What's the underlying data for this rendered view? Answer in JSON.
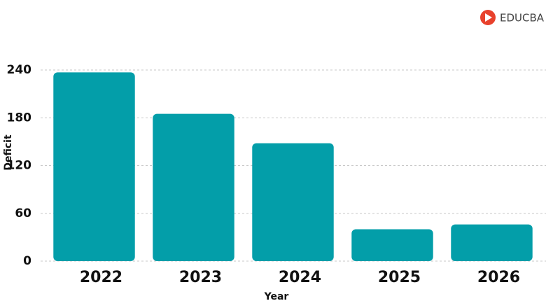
{
  "logo": "EDUCBA",
  "chart_data": {
    "type": "bar",
    "x_label": "Year",
    "y_label": "Deficit",
    "categories": [
      "2022",
      "2023",
      "2024",
      "2025",
      "2026"
    ],
    "values": [
      237,
      185,
      148,
      40,
      46
    ],
    "color": "#039ea9",
    "ylim": [
      0,
      265
    ],
    "yticks": [
      0,
      60,
      120,
      180,
      240
    ],
    "grid": true
  }
}
